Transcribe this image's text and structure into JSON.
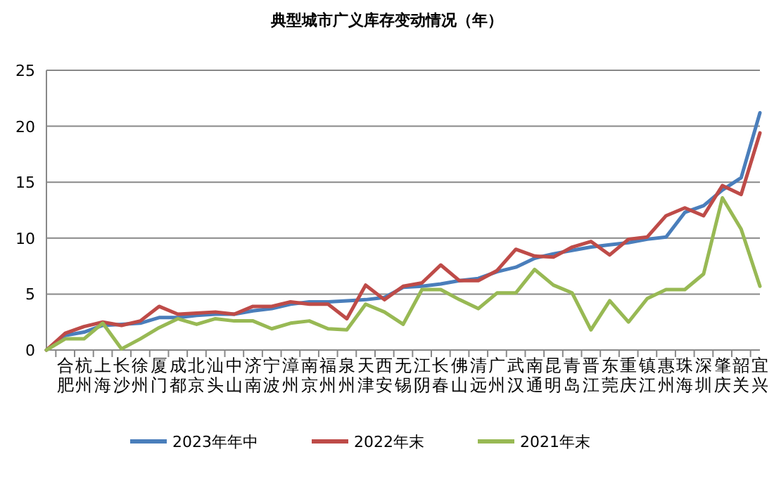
{
  "chart_data": {
    "type": "line",
    "title": "典型城市广义库存变动情况（年）",
    "categories": [
      null,
      "合肥",
      "杭州",
      "上海",
      "长沙",
      "徐州",
      "厦门",
      "成都",
      "北京",
      "汕头",
      "中山",
      "济南",
      "宁波",
      "漳州",
      "南京",
      "福州",
      "泉州",
      "天津",
      "西安",
      "无锡",
      "江阴",
      "长春",
      "佛山",
      "清远",
      "广州",
      "武汉",
      "南通",
      "昆明",
      "青岛",
      "晋江",
      "东莞",
      "重庆",
      "镇江",
      "惠州",
      "珠海",
      "深圳",
      "肇庆",
      "韶关",
      "宜兴"
    ],
    "series": [
      {
        "name": "2023年年中",
        "color": "#4a7ebb",
        "values": [
          0,
          1.3,
          1.6,
          2.2,
          2.3,
          2.4,
          2.9,
          2.9,
          3.1,
          3.2,
          3.2,
          3.5,
          3.7,
          4.1,
          4.3,
          4.3,
          4.4,
          4.5,
          4.7,
          5.6,
          5.7,
          5.9,
          6.2,
          6.4,
          7.0,
          7.4,
          8.2,
          8.6,
          8.9,
          9.2,
          9.4,
          9.6,
          9.9,
          10.1,
          12.3,
          12.9,
          14.3,
          15.4,
          21.2
        ]
      },
      {
        "name": "2022年末",
        "color": "#be4b48",
        "values": [
          0,
          1.5,
          2.1,
          2.5,
          2.2,
          2.6,
          3.9,
          3.2,
          3.3,
          3.4,
          3.2,
          3.9,
          3.9,
          4.3,
          4.1,
          4.1,
          2.8,
          5.8,
          4.5,
          5.7,
          6.0,
          7.6,
          6.2,
          6.2,
          7.1,
          9.0,
          8.4,
          8.3,
          9.2,
          9.7,
          8.5,
          9.9,
          10.1,
          12.0,
          12.7,
          12.0,
          14.7,
          13.9,
          19.4
        ]
      },
      {
        "name": "2021年末",
        "color": "#98b954",
        "values": [
          0,
          1.0,
          1.0,
          2.4,
          0.1,
          1.0,
          2.0,
          2.8,
          2.3,
          2.8,
          2.6,
          2.6,
          1.9,
          2.4,
          2.6,
          1.9,
          1.8,
          4.1,
          3.4,
          2.3,
          5.4,
          5.4,
          4.5,
          3.7,
          5.1,
          5.1,
          7.2,
          5.8,
          5.1,
          1.8,
          4.4,
          2.5,
          4.6,
          5.4,
          5.4,
          6.8,
          13.6,
          10.8,
          5.7
        ]
      }
    ],
    "ylim": [
      0,
      25
    ],
    "yticks": [
      0,
      5,
      10,
      15,
      20,
      25
    ],
    "grid": "y",
    "legend": "bottom",
    "marker": "none",
    "line_style": "solid"
  }
}
